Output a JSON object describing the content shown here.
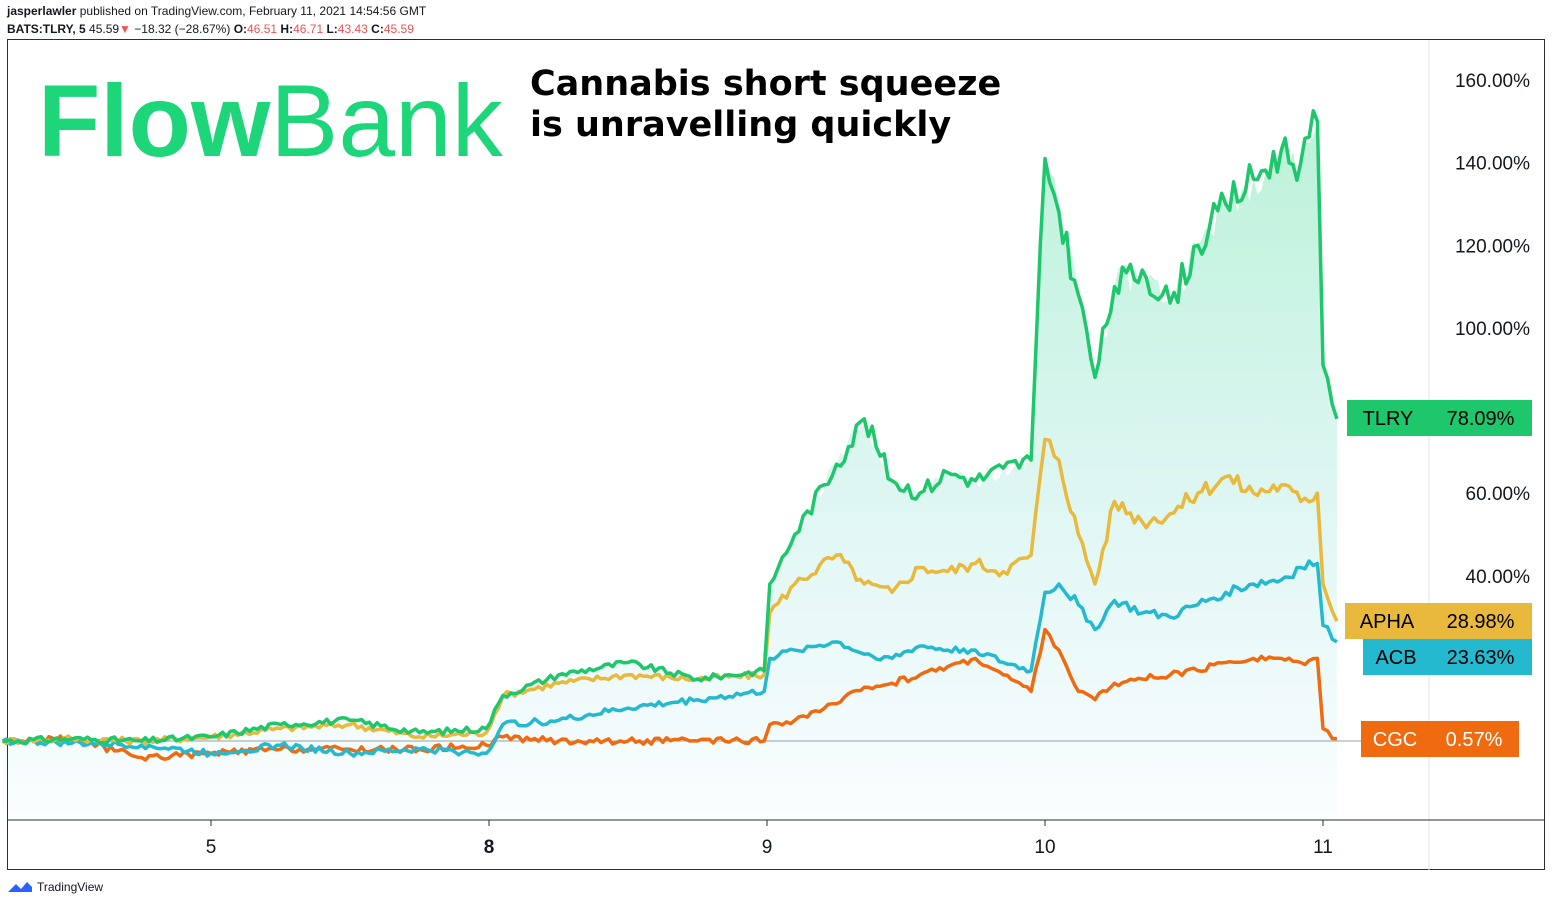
{
  "header": {
    "author": "jasperlawler",
    "published_text": "published on TradingView.com, February 11, 2021 14:54:56 GMT",
    "symbol": "BATS:TLRY, 5",
    "last": "45.59",
    "change": "−18.32 (−28.67%)",
    "o_label": "O:",
    "o_value": "46.51",
    "h_label": "H:",
    "h_value": "46.71",
    "l_label": "L:",
    "l_value": "43.43",
    "c_label": "C:",
    "c_value": "45.59"
  },
  "logo": {
    "text_a": "Flow",
    "text_b": "Bank",
    "color": "#1ed67a"
  },
  "annotation": {
    "line1": "Cannabis short squeeze",
    "line2": "is unravelling quickly"
  },
  "footer": {
    "brand": "TradingView"
  },
  "colors": {
    "TLRY": "#1ec76b",
    "APHA": "#e8b93c",
    "ACB": "#25b9cf",
    "CGC": "#f06b0f"
  },
  "chart_data": {
    "type": "line",
    "y_unit": "%",
    "y_ticks": [
      "160.00%",
      "140.00%",
      "120.00%",
      "100.00%",
      "60.00%",
      "40.00%"
    ],
    "x_ticks": [
      {
        "label": "5",
        "pos": 0.5
      },
      {
        "label": "8",
        "pos": 1.5
      },
      {
        "label": "9",
        "pos": 2.5
      },
      {
        "label": "10",
        "pos": 3.5
      },
      {
        "label": "11",
        "pos": 4.5
      }
    ],
    "xlim": [
      -0.25,
      4.56
    ],
    "ylim": [
      -19,
      164
    ],
    "baseline": 0,
    "series": [
      {
        "name": "TLRY",
        "last_label": "78.09%",
        "points": [
          [
            -0.25,
            0
          ],
          [
            0,
            0.5
          ],
          [
            0.25,
            0
          ],
          [
            0.5,
            1
          ],
          [
            0.75,
            4
          ],
          [
            1,
            5
          ],
          [
            1.25,
            2
          ],
          [
            1.49,
            3
          ],
          [
            1.55,
            11
          ],
          [
            1.75,
            16
          ],
          [
            2.0,
            19
          ],
          [
            2.25,
            15
          ],
          [
            2.49,
            17
          ],
          [
            2.51,
            38
          ],
          [
            2.6,
            50
          ],
          [
            2.75,
            67
          ],
          [
            2.85,
            78
          ],
          [
            2.95,
            63
          ],
          [
            3.05,
            60
          ],
          [
            3.15,
            65
          ],
          [
            3.25,
            63
          ],
          [
            3.35,
            66
          ],
          [
            3.45,
            68
          ],
          [
            3.5,
            141
          ],
          [
            3.55,
            128
          ],
          [
            3.62,
            108
          ],
          [
            3.68,
            88
          ],
          [
            3.75,
            110
          ],
          [
            3.85,
            114
          ],
          [
            3.95,
            106
          ],
          [
            4.05,
            120
          ],
          [
            4.15,
            130
          ],
          [
            4.25,
            136
          ],
          [
            4.35,
            143
          ],
          [
            4.42,
            140
          ],
          [
            4.48,
            150
          ],
          [
            4.5,
            91
          ],
          [
            4.55,
            78
          ]
        ]
      },
      {
        "name": "APHA",
        "last_label": "28.98%",
        "points": [
          [
            -0.25,
            0
          ],
          [
            0,
            0.5
          ],
          [
            0.25,
            0
          ],
          [
            0.5,
            1
          ],
          [
            0.75,
            3
          ],
          [
            1,
            4
          ],
          [
            1.25,
            1
          ],
          [
            1.49,
            2
          ],
          [
            1.55,
            11
          ],
          [
            1.75,
            14
          ],
          [
            2.0,
            16
          ],
          [
            2.25,
            15
          ],
          [
            2.49,
            16
          ],
          [
            2.51,
            31
          ],
          [
            2.6,
            38
          ],
          [
            2.75,
            45
          ],
          [
            2.85,
            38
          ],
          [
            2.95,
            36
          ],
          [
            3.05,
            42
          ],
          [
            3.15,
            41
          ],
          [
            3.25,
            43
          ],
          [
            3.35,
            41
          ],
          [
            3.45,
            45
          ],
          [
            3.5,
            73
          ],
          [
            3.55,
            68
          ],
          [
            3.62,
            50
          ],
          [
            3.68,
            38
          ],
          [
            3.75,
            58
          ],
          [
            3.85,
            53
          ],
          [
            3.95,
            55
          ],
          [
            4.05,
            60
          ],
          [
            4.15,
            64
          ],
          [
            4.25,
            60
          ],
          [
            4.35,
            62
          ],
          [
            4.42,
            58
          ],
          [
            4.48,
            60
          ],
          [
            4.5,
            38
          ],
          [
            4.55,
            29
          ]
        ]
      },
      {
        "name": "ACB",
        "last_label": "23.63%",
        "points": [
          [
            -0.25,
            0
          ],
          [
            0,
            -0.5
          ],
          [
            0.25,
            -1
          ],
          [
            0.5,
            -3
          ],
          [
            0.75,
            -1
          ],
          [
            1,
            -3
          ],
          [
            1.25,
            -2
          ],
          [
            1.49,
            -3
          ],
          [
            1.55,
            4
          ],
          [
            1.75,
            5
          ],
          [
            2.0,
            8
          ],
          [
            2.25,
            10
          ],
          [
            2.49,
            12
          ],
          [
            2.51,
            20
          ],
          [
            2.6,
            22
          ],
          [
            2.75,
            24
          ],
          [
            2.85,
            21
          ],
          [
            2.95,
            20
          ],
          [
            3.05,
            23
          ],
          [
            3.15,
            22
          ],
          [
            3.25,
            22
          ],
          [
            3.35,
            19
          ],
          [
            3.45,
            17
          ],
          [
            3.5,
            36
          ],
          [
            3.55,
            38
          ],
          [
            3.62,
            33
          ],
          [
            3.68,
            27
          ],
          [
            3.75,
            34
          ],
          [
            3.85,
            31
          ],
          [
            3.95,
            30
          ],
          [
            4.05,
            33
          ],
          [
            4.15,
            36
          ],
          [
            4.25,
            38
          ],
          [
            4.35,
            39
          ],
          [
            4.42,
            42
          ],
          [
            4.48,
            43
          ],
          [
            4.5,
            28
          ],
          [
            4.55,
            24
          ]
        ]
      },
      {
        "name": "CGC",
        "last_label": "0.57%",
        "points": [
          [
            -0.25,
            0
          ],
          [
            0,
            0.5
          ],
          [
            0.25,
            -4
          ],
          [
            0.5,
            -3
          ],
          [
            0.75,
            -2
          ],
          [
            1,
            -2
          ],
          [
            1.25,
            -2
          ],
          [
            1.49,
            -1
          ],
          [
            1.55,
            1
          ],
          [
            1.75,
            0
          ],
          [
            2.0,
            0
          ],
          [
            2.25,
            0
          ],
          [
            2.49,
            0
          ],
          [
            2.51,
            4
          ],
          [
            2.6,
            5
          ],
          [
            2.75,
            9
          ],
          [
            2.85,
            13
          ],
          [
            2.95,
            14
          ],
          [
            3.05,
            16
          ],
          [
            3.15,
            18
          ],
          [
            3.25,
            20
          ],
          [
            3.35,
            16
          ],
          [
            3.45,
            12
          ],
          [
            3.5,
            27
          ],
          [
            3.55,
            22
          ],
          [
            3.62,
            12
          ],
          [
            3.68,
            10
          ],
          [
            3.75,
            14
          ],
          [
            3.85,
            15
          ],
          [
            3.95,
            16
          ],
          [
            4.05,
            17
          ],
          [
            4.15,
            19
          ],
          [
            4.25,
            20
          ],
          [
            4.35,
            20
          ],
          [
            4.42,
            19
          ],
          [
            4.48,
            20
          ],
          [
            4.5,
            3
          ],
          [
            4.55,
            0.57
          ]
        ]
      }
    ]
  }
}
